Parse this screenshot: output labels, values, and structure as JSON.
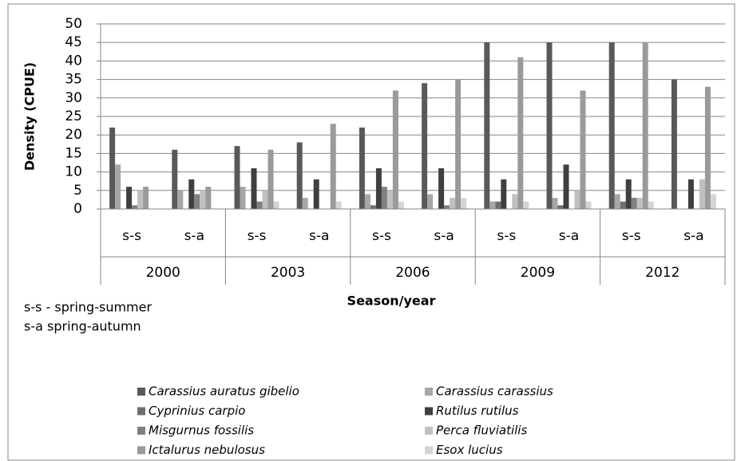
{
  "chart_data": {
    "type": "bar",
    "y_label": "Density (CPUE)",
    "x_label": "Season/year",
    "annotations": [
      "s-s - spring-summer",
      "s-a spring-autumn"
    ],
    "categories": [
      "s-s",
      "s-a",
      "s-s",
      "s-a",
      "s-s",
      "s-a",
      "s-s",
      "s-a",
      "s-s",
      "s-a"
    ],
    "groups": [
      "2000",
      "2003",
      "2006",
      "2009",
      "2012"
    ],
    "ylim": [
      0,
      50
    ],
    "yticks": [
      0,
      5,
      10,
      15,
      20,
      25,
      30,
      35,
      40,
      45,
      50
    ],
    "grid": true,
    "series": [
      {
        "name": "Carassius auratus gibelio",
        "color": "#595959",
        "values": [
          22,
          16,
          17,
          18,
          22,
          34,
          45,
          45,
          45,
          35
        ]
      },
      {
        "name": "Carassius carassius",
        "color": "#a6a6a6",
        "values": [
          12,
          5,
          6,
          3,
          4,
          4,
          2,
          3,
          4,
          0
        ]
      },
      {
        "name": "Cyprinius carpio",
        "color": "#6f6f6f",
        "values": [
          0,
          0,
          0,
          0,
          1,
          0,
          2,
          1,
          2,
          0
        ]
      },
      {
        "name": "Rutilus rutilus",
        "color": "#3f3f3f",
        "values": [
          6,
          8,
          11,
          8,
          11,
          11,
          8,
          12,
          8,
          8
        ]
      },
      {
        "name": "Misgurnus fossilis",
        "color": "#808080",
        "values": [
          1,
          4,
          2,
          0,
          6,
          1,
          0,
          0,
          3,
          0
        ]
      },
      {
        "name": "Perca fluviatilis",
        "color": "#c0c0c0",
        "values": [
          5,
          5,
          5,
          0,
          5,
          3,
          4,
          5,
          3,
          8
        ]
      },
      {
        "name": "Ictalurus nebulosus",
        "color": "#9a9a9a",
        "values": [
          6,
          6,
          16,
          23,
          32,
          35,
          41,
          32,
          45,
          33
        ]
      },
      {
        "name": "Esox lucius",
        "color": "#d4d4d4",
        "values": [
          0,
          0,
          2,
          2,
          2,
          3,
          2,
          2,
          2,
          4
        ]
      }
    ]
  }
}
